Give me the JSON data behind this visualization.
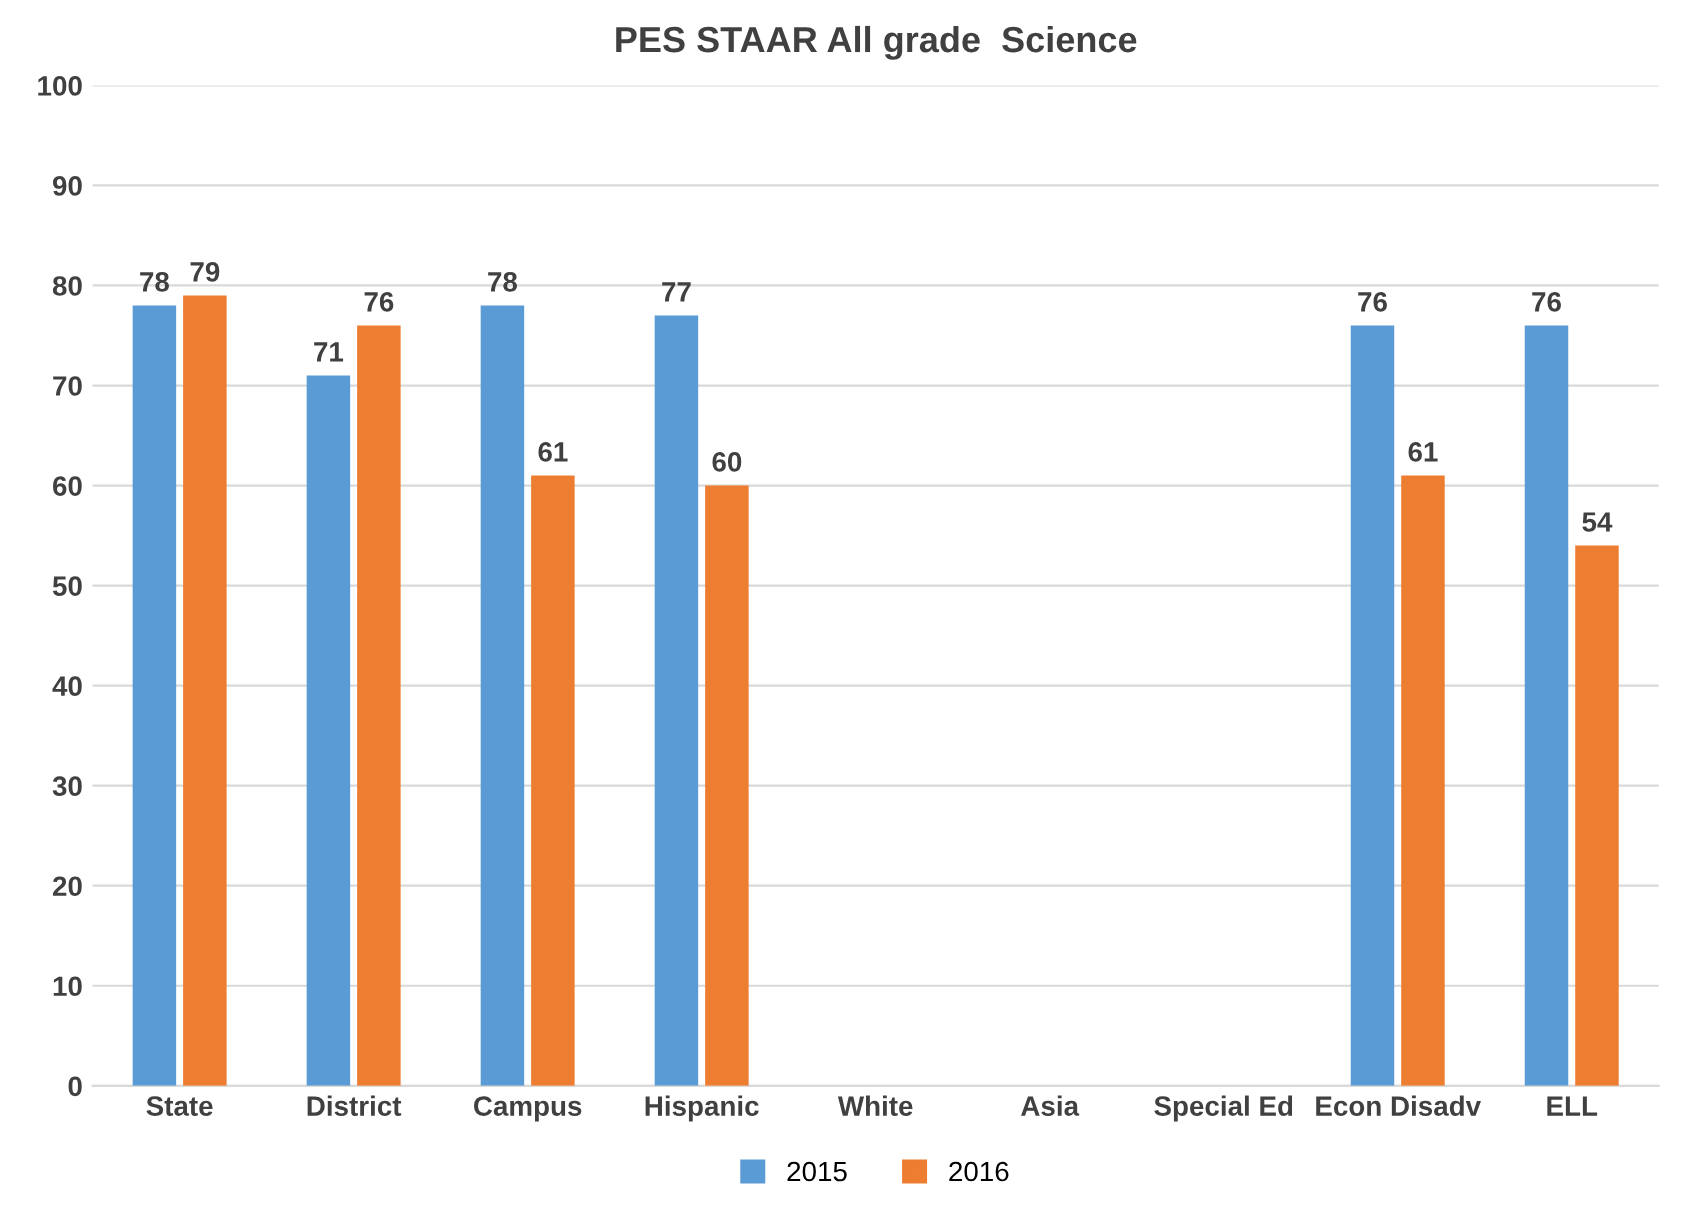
{
  "chart_data": {
    "type": "bar",
    "title": "PES STAAR All grade  Science",
    "categories": [
      "State",
      "District",
      "Campus",
      "Hispanic",
      "White",
      "Asia",
      "Special Ed",
      "Econ Disadv",
      "ELL"
    ],
    "series": [
      {
        "name": "2015",
        "color": "#5b9bd5",
        "values": [
          78,
          71,
          78,
          77,
          null,
          null,
          null,
          76,
          76
        ]
      },
      {
        "name": "2016",
        "color": "#ed7d31",
        "values": [
          79,
          76,
          61,
          60,
          null,
          null,
          null,
          61,
          54
        ]
      }
    ],
    "ylim": [
      0,
      100
    ],
    "yticks": [
      0,
      10,
      20,
      30,
      40,
      50,
      60,
      70,
      80,
      90,
      100
    ],
    "grid": "y",
    "legend": "bottom",
    "data_labels": true
  }
}
